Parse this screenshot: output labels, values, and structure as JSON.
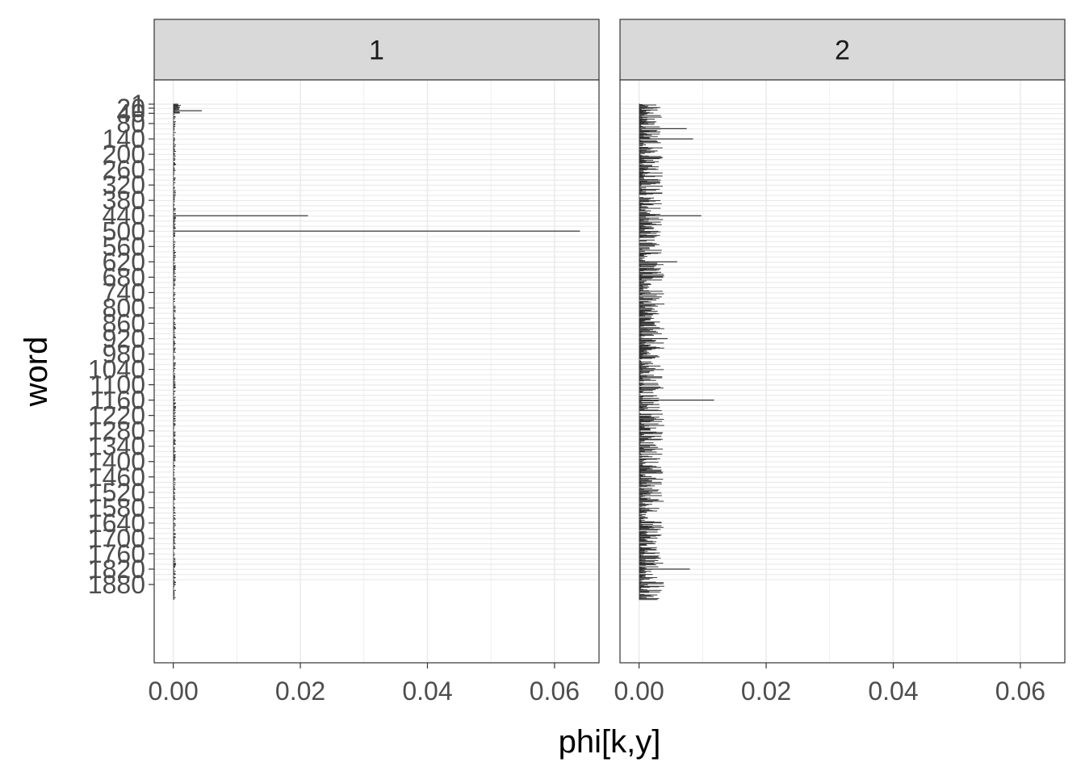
{
  "chart_data": {
    "type": "bar",
    "orientation": "horizontal",
    "facet_by": "k",
    "facets": [
      "1",
      "2"
    ],
    "xlabel": "phi[k,y]",
    "ylabel": "word",
    "xlim": [
      -0.003,
      0.067
    ],
    "x_ticks": [
      0.0,
      0.02,
      0.04,
      0.06
    ],
    "x_tick_labels": [
      "0.00",
      "0.02",
      "0.04",
      "0.06"
    ],
    "y_tick_labels": [
      "1",
      "20",
      "40",
      "80",
      "140",
      "200",
      "260",
      "320",
      "380",
      "440",
      "500",
      "560",
      "620",
      "680",
      "740",
      "800",
      "860",
      "920",
      "980",
      "1040",
      "1100",
      "1160",
      "1220",
      "1280",
      "1340",
      "1400",
      "1460",
      "1520",
      "1580",
      "1640",
      "1700",
      "1760",
      "1820",
      "1880"
    ],
    "grid": true,
    "legend": "none",
    "series": [
      {
        "name": "1",
        "peaks": [
          {
            "word": 30,
            "value": 0.0045
          },
          {
            "word": 440,
            "value": 0.0212
          },
          {
            "word": 500,
            "value": 0.064
          }
        ],
        "baseline_range": [
          0.0,
          0.001
        ]
      },
      {
        "name": "2",
        "peaks": [
          {
            "word": 20,
            "value": 0.0022
          },
          {
            "word": 100,
            "value": 0.0075
          },
          {
            "word": 140,
            "value": 0.0085
          },
          {
            "word": 440,
            "value": 0.0098
          },
          {
            "word": 620,
            "value": 0.006
          },
          {
            "word": 920,
            "value": 0.0045
          },
          {
            "word": 1160,
            "value": 0.0118
          },
          {
            "word": 1820,
            "value": 0.008
          }
        ],
        "baseline_range": [
          0.0,
          0.004
        ]
      }
    ],
    "colors": {
      "bar": "#333333",
      "strip_fill": "#d9d9d9",
      "grid": "#ebebeb"
    }
  }
}
